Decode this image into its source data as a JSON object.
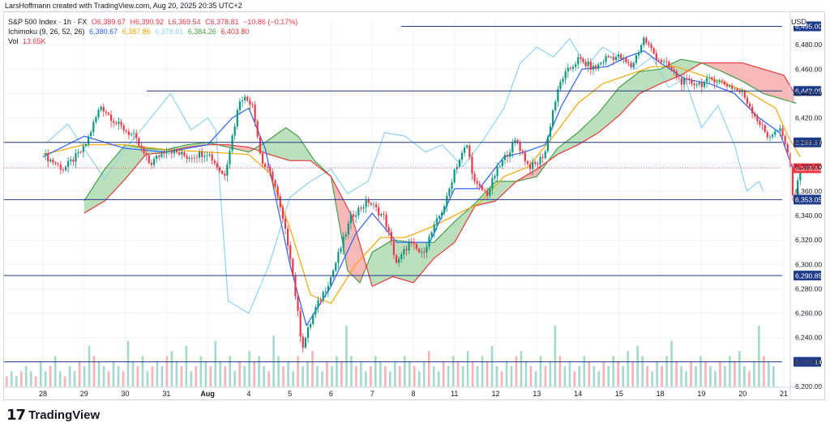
{
  "header": {
    "credit": "LarsHoffmann created with TradingView.com, Aug 20, 2025 20:35 UTC+2",
    "symbol": "S&P 500 Index · 1h · FX",
    "ohlc": {
      "o": "O6,389.67",
      "h": "H6,390.92",
      "l": "L6,369.54",
      "c": "C6,378.81",
      "chg": "−10.86 (−0.17%)"
    },
    "ichimoku": {
      "label": "Ichimoku (9, 26, 52, 26)",
      "v1": "6,380.67",
      "v2": "6,387.86",
      "v3": "6,378.81",
      "v4": "6,384.26",
      "v5": "6,403.80"
    },
    "vol": {
      "label": "Vol",
      "value": "13.65K"
    }
  },
  "currency": "USD",
  "brand": {
    "logo": "17",
    "name": "TradingView"
  },
  "colors": {
    "up": "#089981",
    "down": "#f23645",
    "tenkan": "#2962ff",
    "kijun": "#f7a600",
    "chikou": "#8fd3f0",
    "spanA": "#43a047",
    "spanB": "#e53935",
    "cloudUp": "#a5d6a7",
    "cloudDown": "#f7a1a1",
    "hline": "#1e3a8a",
    "grid": "#f0f3fa"
  },
  "chart_data": {
    "type": "candlestick",
    "ylim": [
      6200,
      6500
    ],
    "y_ticks": [
      6200,
      6220,
      6240,
      6260,
      6280,
      6300,
      6320,
      6340,
      6360,
      6380,
      6400,
      6420,
      6440,
      6460,
      6480
    ],
    "y_tick_labels": [
      "6,200.00",
      "6,220.00",
      "6,240.00",
      "6,260.00",
      "6,280.00",
      "6,300.00",
      "6,320.00",
      "6,340.00",
      "6,360.00",
      "6,380.00",
      "6,400.00",
      "6,420.00",
      "6,440.00",
      "6,460.00",
      "6,480.00"
    ],
    "x_ticks": [
      "28",
      "29",
      "30",
      "31",
      "Aug",
      "4",
      "5",
      "6",
      "7",
      "8",
      "11",
      "12",
      "13",
      "14",
      "15",
      "18",
      "19",
      "20",
      "21"
    ],
    "hlines": [
      {
        "value": 6495.0,
        "label": "6,495.00"
      },
      {
        "value": 6442.05,
        "label": "6,442.05"
      },
      {
        "value": 6399.97,
        "label": "6,399.97"
      },
      {
        "value": 6353.05,
        "label": "6,353.05"
      },
      {
        "value": 6290.85,
        "label": "6,290.85"
      },
      {
        "value": 6220.14,
        "label": "6,220.14"
      }
    ],
    "last_price": {
      "value": 6378.81,
      "label": "6,378.81"
    },
    "close_path": [
      [
        0,
        6390
      ],
      [
        0.5,
        6378
      ],
      [
        1,
        6395
      ],
      [
        1.4,
        6430
      ],
      [
        1.8,
        6415
      ],
      [
        2.2,
        6405
      ],
      [
        2.6,
        6382
      ],
      [
        3,
        6395
      ],
      [
        3.5,
        6388
      ],
      [
        4,
        6392
      ],
      [
        4.4,
        6372
      ],
      [
        4.8,
        6438
      ],
      [
        5.1,
        6432
      ],
      [
        5.3,
        6385
      ],
      [
        5.6,
        6370
      ],
      [
        6,
        6310
      ],
      [
        6.3,
        6232
      ],
      [
        6.6,
        6262
      ],
      [
        7,
        6290
      ],
      [
        7.5,
        6340
      ],
      [
        7.9,
        6352
      ],
      [
        8.3,
        6338
      ],
      [
        8.6,
        6300
      ],
      [
        8.9,
        6318
      ],
      [
        9.2,
        6308
      ],
      [
        9.5,
        6330
      ],
      [
        9.8,
        6352
      ],
      [
        10,
        6378
      ],
      [
        10.3,
        6398
      ],
      [
        10.5,
        6365
      ],
      [
        10.8,
        6358
      ],
      [
        11,
        6375
      ],
      [
        11.3,
        6392
      ],
      [
        11.5,
        6402
      ],
      [
        11.8,
        6380
      ],
      [
        12,
        6382
      ],
      [
        12.2,
        6392
      ],
      [
        12.4,
        6428
      ],
      [
        12.6,
        6452
      ],
      [
        13,
        6468
      ],
      [
        13.4,
        6460
      ],
      [
        13.7,
        6470
      ],
      [
        14,
        6470
      ],
      [
        14.3,
        6462
      ],
      [
        14.6,
        6485
      ],
      [
        14.9,
        6470
      ],
      [
        15.2,
        6462
      ],
      [
        15.5,
        6450
      ],
      [
        16,
        6448
      ],
      [
        16.3,
        6452
      ],
      [
        16.7,
        6446
      ],
      [
        17,
        6440
      ],
      [
        17.3,
        6422
      ],
      [
        17.6,
        6405
      ],
      [
        17.9,
        6410
      ],
      [
        18.1,
        6392
      ],
      [
        18.25,
        6350
      ],
      [
        18.4,
        6378
      ]
    ],
    "tenkan": [
      [
        0,
        6388
      ],
      [
        1,
        6405
      ],
      [
        2,
        6395
      ],
      [
        3,
        6392
      ],
      [
        4,
        6398
      ],
      [
        4.6,
        6420
      ],
      [
        5,
        6428
      ],
      [
        5.4,
        6395
      ],
      [
        6,
        6300
      ],
      [
        6.4,
        6250
      ],
      [
        7,
        6282
      ],
      [
        7.6,
        6325
      ],
      [
        8,
        6342
      ],
      [
        8.6,
        6318
      ],
      [
        9.4,
        6318
      ],
      [
        10,
        6362
      ],
      [
        10.6,
        6362
      ],
      [
        11.2,
        6388
      ],
      [
        11.7,
        6392
      ],
      [
        12.2,
        6398
      ],
      [
        12.6,
        6430
      ],
      [
        13.1,
        6460
      ],
      [
        13.7,
        6462
      ],
      [
        14.2,
        6470
      ],
      [
        14.6,
        6475
      ],
      [
        15,
        6465
      ],
      [
        15.6,
        6452
      ],
      [
        16.2,
        6448
      ],
      [
        16.8,
        6440
      ],
      [
        17.4,
        6420
      ],
      [
        17.9,
        6408
      ],
      [
        18.2,
        6380
      ],
      [
        18.4,
        6375
      ]
    ],
    "kijun": [
      [
        0,
        6390
      ],
      [
        1,
        6398
      ],
      [
        2,
        6398
      ],
      [
        3,
        6394
      ],
      [
        4,
        6392
      ],
      [
        5,
        6390
      ],
      [
        5.5,
        6375
      ],
      [
        6,
        6330
      ],
      [
        6.5,
        6275
      ],
      [
        7,
        6268
      ],
      [
        7.6,
        6300
      ],
      [
        8.2,
        6322
      ],
      [
        8.8,
        6322
      ],
      [
        9.4,
        6330
      ],
      [
        10,
        6340
      ],
      [
        10.6,
        6350
      ],
      [
        11.2,
        6372
      ],
      [
        11.8,
        6380
      ],
      [
        12.4,
        6405
      ],
      [
        13,
        6432
      ],
      [
        13.6,
        6448
      ],
      [
        14.2,
        6455
      ],
      [
        14.8,
        6462
      ],
      [
        15.4,
        6462
      ],
      [
        16,
        6455
      ],
      [
        16.6,
        6448
      ],
      [
        17.2,
        6440
      ],
      [
        17.8,
        6428
      ],
      [
        18.1,
        6405
      ],
      [
        18.4,
        6388
      ]
    ],
    "chikou": [
      [
        0.1,
        6400
      ],
      [
        0.6,
        6415
      ],
      [
        1,
        6395
      ],
      [
        1.5,
        6370
      ],
      [
        2,
        6395
      ],
      [
        2.5,
        6415
      ],
      [
        3.1,
        6440
      ],
      [
        3.6,
        6410
      ],
      [
        4,
        6420
      ],
      [
        4.2,
        6410
      ],
      [
        4.5,
        6270
      ],
      [
        5,
        6260
      ],
      [
        5.5,
        6300
      ],
      [
        6,
        6355
      ],
      [
        6.5,
        6368
      ],
      [
        7,
        6378
      ],
      [
        7.4,
        6358
      ],
      [
        7.9,
        6368
      ],
      [
        8.3,
        6408
      ],
      [
        8.8,
        6405
      ],
      [
        9.3,
        6392
      ],
      [
        9.7,
        6398
      ],
      [
        10.2,
        6380
      ],
      [
        10.7,
        6402
      ],
      [
        11.2,
        6428
      ],
      [
        11.6,
        6465
      ],
      [
        12,
        6478
      ],
      [
        12.4,
        6470
      ],
      [
        12.8,
        6485
      ],
      [
        13.2,
        6462
      ],
      [
        13.6,
        6478
      ],
      [
        14,
        6470
      ],
      [
        14.4,
        6460
      ],
      [
        14.8,
        6470
      ],
      [
        15.2,
        6445
      ],
      [
        15.6,
        6452
      ],
      [
        16,
        6412
      ],
      [
        16.4,
        6430
      ],
      [
        16.8,
        6398
      ],
      [
        17.1,
        6360
      ],
      [
        17.4,
        6368
      ],
      [
        17.5,
        6360
      ]
    ],
    "span_a": [
      [
        1,
        6352
      ],
      [
        1.5,
        6378
      ],
      [
        2,
        6398
      ],
      [
        2.5,
        6395
      ],
      [
        3,
        6394
      ],
      [
        3.5,
        6398
      ],
      [
        4,
        6400
      ],
      [
        4.5,
        6396
      ],
      [
        5,
        6392
      ],
      [
        5.4,
        6400
      ],
      [
        5.9,
        6412
      ],
      [
        6.2,
        6405
      ],
      [
        6.6,
        6385
      ],
      [
        7,
        6372
      ],
      [
        7.4,
        6295
      ],
      [
        7.7,
        6285
      ],
      [
        8,
        6310
      ],
      [
        8.5,
        6320
      ],
      [
        9,
        6318
      ],
      [
        9.5,
        6318
      ],
      [
        10,
        6335
      ],
      [
        10.5,
        6350
      ],
      [
        11,
        6368
      ],
      [
        11.5,
        6368
      ],
      [
        12,
        6372
      ],
      [
        12.5,
        6395
      ],
      [
        13,
        6408
      ],
      [
        13.5,
        6424
      ],
      [
        14,
        6445
      ],
      [
        14.5,
        6458
      ],
      [
        15,
        6460
      ],
      [
        15.5,
        6468
      ],
      [
        16,
        6465
      ],
      [
        16.5,
        6458
      ],
      [
        17,
        6450
      ],
      [
        17.5,
        6440
      ],
      [
        18,
        6435
      ],
      [
        18.3,
        6432
      ]
    ],
    "span_b": [
      [
        1,
        6342
      ],
      [
        1.5,
        6352
      ],
      [
        2,
        6370
      ],
      [
        2.5,
        6390
      ],
      [
        3,
        6392
      ],
      [
        3.5,
        6396
      ],
      [
        4,
        6398
      ],
      [
        4.5,
        6398
      ],
      [
        5,
        6396
      ],
      [
        5.5,
        6390
      ],
      [
        6,
        6385
      ],
      [
        6.5,
        6385
      ],
      [
        7,
        6372
      ],
      [
        7.5,
        6340
      ],
      [
        8,
        6282
      ],
      [
        8.5,
        6290
      ],
      [
        9,
        6285
      ],
      [
        9.5,
        6305
      ],
      [
        10,
        6318
      ],
      [
        10.5,
        6348
      ],
      [
        11,
        6352
      ],
      [
        11.5,
        6368
      ],
      [
        12,
        6378
      ],
      [
        12.5,
        6390
      ],
      [
        13,
        6398
      ],
      [
        13.5,
        6408
      ],
      [
        14,
        6422
      ],
      [
        14.5,
        6440
      ],
      [
        15,
        6448
      ],
      [
        15.5,
        6455
      ],
      [
        16,
        6465
      ],
      [
        16.5,
        6465
      ],
      [
        17,
        6465
      ],
      [
        17.5,
        6460
      ],
      [
        18,
        6455
      ],
      [
        18.3,
        6438
      ]
    ],
    "volume_profile": [
      2,
      3,
      2,
      3,
      4,
      3,
      2,
      5,
      3,
      4,
      6,
      3,
      2,
      4,
      3,
      5,
      4,
      8,
      6,
      5,
      4,
      3,
      5,
      4,
      3,
      9,
      5,
      4,
      6,
      3,
      4,
      5,
      4,
      6,
      7,
      5,
      4,
      8,
      3,
      4,
      6,
      5,
      4,
      9,
      5,
      4,
      6,
      3,
      5,
      4,
      7,
      5,
      6,
      4,
      3,
      10,
      6,
      4,
      5,
      3,
      6,
      4,
      5,
      7,
      4,
      3,
      5,
      4,
      6,
      5,
      12,
      6,
      4,
      5,
      3,
      4,
      6,
      5,
      4,
      3,
      5,
      4,
      6,
      5,
      4,
      3,
      5,
      7,
      4,
      3,
      5,
      4,
      6,
      5,
      4,
      7,
      5,
      4,
      6,
      5,
      8,
      4,
      3,
      5,
      4,
      6,
      7,
      5,
      4,
      3,
      6,
      4,
      5,
      12,
      6,
      4,
      5,
      3,
      4,
      6,
      5,
      4,
      3,
      5,
      4,
      6,
      5,
      4,
      7,
      5,
      8,
      6,
      4,
      3,
      5,
      4,
      6,
      9,
      5,
      4,
      3,
      5,
      4,
      6,
      5,
      4,
      3,
      5,
      4,
      6,
      5,
      7,
      4,
      3,
      5,
      12,
      6,
      5,
      4
    ]
  }
}
